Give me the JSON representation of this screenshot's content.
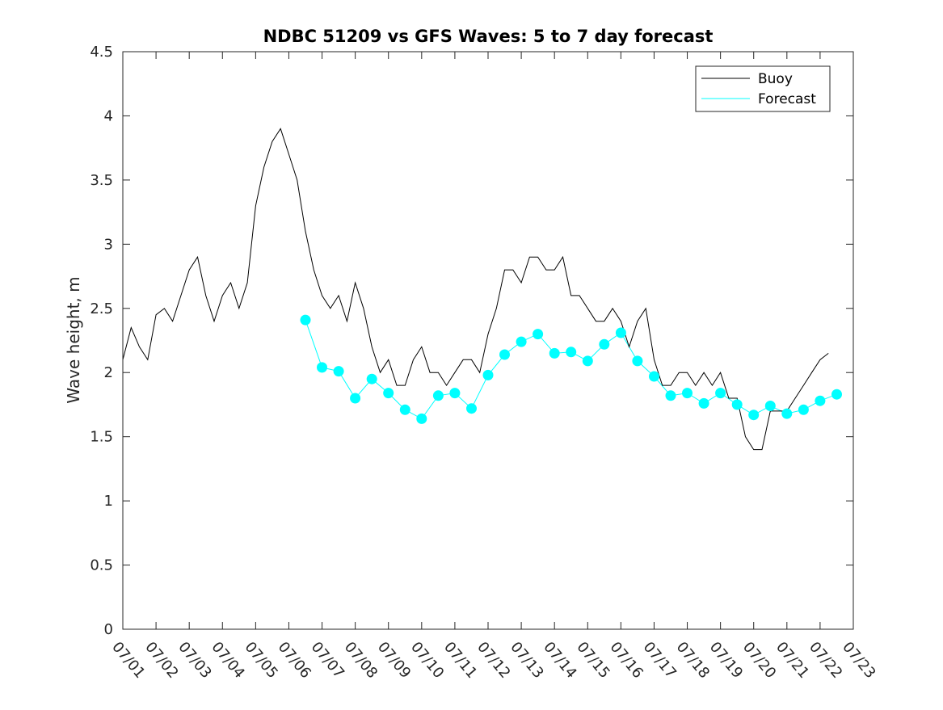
{
  "chart_data": {
    "type": "line",
    "title": "NDBC 51209 vs GFS Waves: 5 to 7 day forecast",
    "xlabel": "",
    "ylabel": "Wave height, m",
    "x_range": [
      "07/01",
      "07/23"
    ],
    "ylim": [
      0,
      4.5
    ],
    "yticks": [
      0,
      0.5,
      1,
      1.5,
      2,
      2.5,
      3,
      3.5,
      4,
      4.5
    ],
    "ytick_labels": [
      "0",
      "0.5",
      "1",
      "1.5",
      "2",
      "2.5",
      "3",
      "3.5",
      "4",
      "4.5"
    ],
    "xtick_labels": [
      "07/01",
      "07/02",
      "07/03",
      "07/04",
      "07/05",
      "07/06",
      "07/07",
      "07/08",
      "07/09",
      "07/10",
      "07/11",
      "07/12",
      "07/13",
      "07/14",
      "07/15",
      "07/16",
      "07/17",
      "07/18",
      "07/19",
      "07/20",
      "07/21",
      "07/22",
      "07/23"
    ],
    "legend": {
      "position": "top-right",
      "entries": [
        "Buoy",
        "Forecast"
      ]
    },
    "colors": {
      "buoy": "#000000",
      "forecast": "#00ffff",
      "axis": "#262626"
    },
    "grid": false,
    "series": [
      {
        "name": "Buoy",
        "style": "line",
        "points": [
          [
            "07/01 00:00",
            2.1
          ],
          [
            "07/01 06:00",
            2.35
          ],
          [
            "07/01 12:00",
            2.2
          ],
          [
            "07/01 18:00",
            2.1
          ],
          [
            "07/02 00:00",
            2.45
          ],
          [
            "07/02 06:00",
            2.5
          ],
          [
            "07/02 12:00",
            2.4
          ],
          [
            "07/02 18:00",
            2.6
          ],
          [
            "07/03 00:00",
            2.8
          ],
          [
            "07/03 06:00",
            2.9
          ],
          [
            "07/03 12:00",
            2.6
          ],
          [
            "07/03 18:00",
            2.4
          ],
          [
            "07/04 00:00",
            2.6
          ],
          [
            "07/04 06:00",
            2.7
          ],
          [
            "07/04 12:00",
            2.5
          ],
          [
            "07/04 18:00",
            2.7
          ],
          [
            "07/05 00:00",
            3.3
          ],
          [
            "07/05 06:00",
            3.6
          ],
          [
            "07/05 12:00",
            3.8
          ],
          [
            "07/05 18:00",
            3.9
          ],
          [
            "07/06 00:00",
            3.7
          ],
          [
            "07/06 06:00",
            3.5
          ],
          [
            "07/06 12:00",
            3.1
          ],
          [
            "07/06 18:00",
            2.8
          ],
          [
            "07/07 00:00",
            2.6
          ],
          [
            "07/07 06:00",
            2.5
          ],
          [
            "07/07 12:00",
            2.6
          ],
          [
            "07/07 18:00",
            2.4
          ],
          [
            "07/08 00:00",
            2.7
          ],
          [
            "07/08 06:00",
            2.5
          ],
          [
            "07/08 12:00",
            2.2
          ],
          [
            "07/08 18:00",
            2.0
          ],
          [
            "07/09 00:00",
            2.1
          ],
          [
            "07/09 06:00",
            1.9
          ],
          [
            "07/09 12:00",
            1.9
          ],
          [
            "07/09 18:00",
            2.1
          ],
          [
            "07/10 00:00",
            2.2
          ],
          [
            "07/10 06:00",
            2.0
          ],
          [
            "07/10 12:00",
            2.0
          ],
          [
            "07/10 18:00",
            1.9
          ],
          [
            "07/11 00:00",
            2.0
          ],
          [
            "07/11 06:00",
            2.1
          ],
          [
            "07/11 12:00",
            2.1
          ],
          [
            "07/11 18:00",
            2.0
          ],
          [
            "07/12 00:00",
            2.3
          ],
          [
            "07/12 06:00",
            2.5
          ],
          [
            "07/12 12:00",
            2.8
          ],
          [
            "07/12 18:00",
            2.8
          ],
          [
            "07/13 00:00",
            2.7
          ],
          [
            "07/13 06:00",
            2.9
          ],
          [
            "07/13 12:00",
            2.9
          ],
          [
            "07/13 18:00",
            2.8
          ],
          [
            "07/14 00:00",
            2.8
          ],
          [
            "07/14 06:00",
            2.9
          ],
          [
            "07/14 12:00",
            2.6
          ],
          [
            "07/14 18:00",
            2.6
          ],
          [
            "07/15 00:00",
            2.5
          ],
          [
            "07/15 06:00",
            2.4
          ],
          [
            "07/15 12:00",
            2.4
          ],
          [
            "07/15 18:00",
            2.5
          ],
          [
            "07/16 00:00",
            2.4
          ],
          [
            "07/16 06:00",
            2.2
          ],
          [
            "07/16 12:00",
            2.4
          ],
          [
            "07/16 18:00",
            2.5
          ],
          [
            "07/17 00:00",
            2.1
          ],
          [
            "07/17 06:00",
            1.9
          ],
          [
            "07/17 12:00",
            1.9
          ],
          [
            "07/17 18:00",
            2.0
          ],
          [
            "07/18 00:00",
            2.0
          ],
          [
            "07/18 06:00",
            1.9
          ],
          [
            "07/18 12:00",
            2.0
          ],
          [
            "07/18 18:00",
            1.9
          ],
          [
            "07/19 00:00",
            2.0
          ],
          [
            "07/19 06:00",
            1.8
          ],
          [
            "07/19 12:00",
            1.8
          ],
          [
            "07/19 18:00",
            1.5
          ],
          [
            "07/20 00:00",
            1.4
          ],
          [
            "07/20 06:00",
            1.4
          ],
          [
            "07/20 12:00",
            1.7
          ],
          [
            "07/20 18:00",
            1.7
          ],
          [
            "07/21 00:00",
            1.7
          ],
          [
            "07/21 06:00",
            1.8
          ],
          [
            "07/21 12:00",
            1.9
          ],
          [
            "07/21 18:00",
            2.0
          ],
          [
            "07/22 00:00",
            2.1
          ],
          [
            "07/22 06:00",
            2.15
          ]
        ]
      },
      {
        "name": "Forecast",
        "style": "markers+lines",
        "points": [
          [
            "07/06 12:00",
            2.41
          ],
          [
            "07/07 00:00",
            2.04
          ],
          [
            "07/07 12:00",
            2.01
          ],
          [
            "07/08 00:00",
            1.8
          ],
          [
            "07/08 12:00",
            1.95
          ],
          [
            "07/09 00:00",
            1.84
          ],
          [
            "07/09 12:00",
            1.71
          ],
          [
            "07/10 00:00",
            1.64
          ],
          [
            "07/10 12:00",
            1.82
          ],
          [
            "07/11 00:00",
            1.84
          ],
          [
            "07/11 12:00",
            1.72
          ],
          [
            "07/12 00:00",
            1.98
          ],
          [
            "07/12 12:00",
            2.14
          ],
          [
            "07/13 00:00",
            2.24
          ],
          [
            "07/13 12:00",
            2.3
          ],
          [
            "07/14 00:00",
            2.15
          ],
          [
            "07/14 12:00",
            2.16
          ],
          [
            "07/15 00:00",
            2.09
          ],
          [
            "07/15 12:00",
            2.22
          ],
          [
            "07/16 00:00",
            2.31
          ],
          [
            "07/16 12:00",
            2.09
          ],
          [
            "07/17 00:00",
            1.97
          ],
          [
            "07/17 12:00",
            1.82
          ],
          [
            "07/18 00:00",
            1.84
          ],
          [
            "07/18 12:00",
            1.76
          ],
          [
            "07/19 00:00",
            1.84
          ],
          [
            "07/19 12:00",
            1.75
          ],
          [
            "07/20 00:00",
            1.67
          ],
          [
            "07/20 12:00",
            1.74
          ],
          [
            "07/21 00:00",
            1.68
          ],
          [
            "07/21 12:00",
            1.71
          ],
          [
            "07/22 00:00",
            1.78
          ],
          [
            "07/22 12:00",
            1.83
          ]
        ]
      }
    ]
  }
}
